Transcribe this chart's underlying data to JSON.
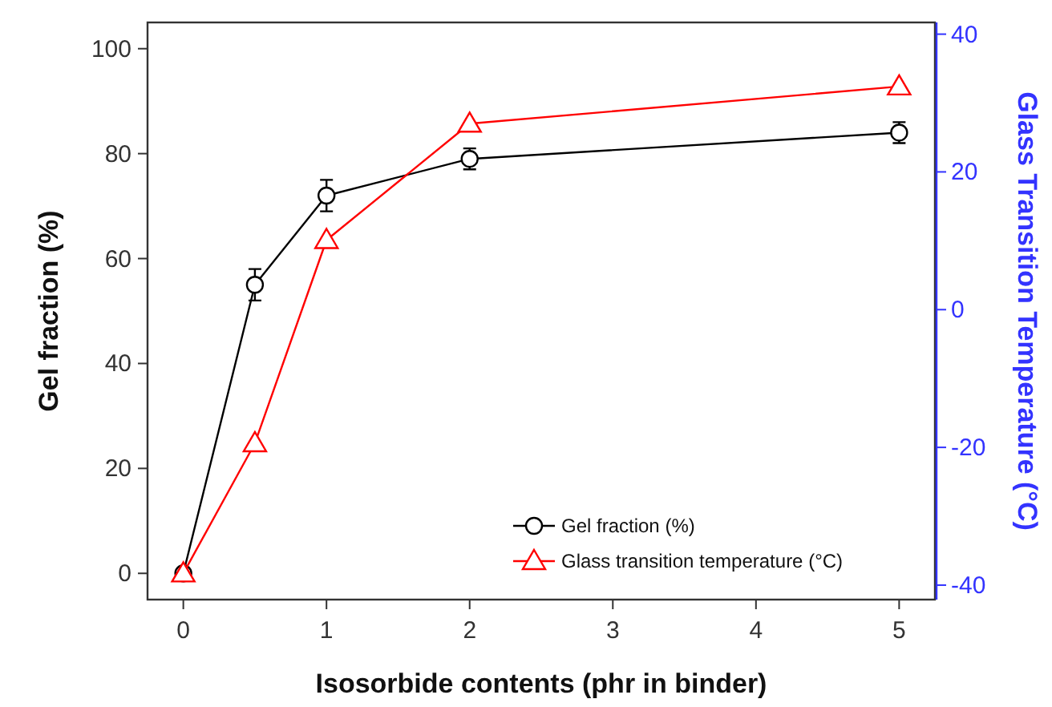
{
  "chart_data": {
    "type": "line",
    "xlabel": "Isosorbide contents (phr in binder)",
    "ylabel": "Gel fraction (%)",
    "y2label": "Glass Transition Temperature (°C)",
    "x": [
      0,
      0.5,
      1,
      2,
      5
    ],
    "xlim": [
      -0.25,
      5.25
    ],
    "xticks": [
      0,
      1,
      2,
      3,
      4,
      5
    ],
    "ylim": [
      -5,
      105
    ],
    "yticks": [
      0,
      20,
      40,
      60,
      80,
      100
    ],
    "y2lim": [
      -42.1,
      41.7
    ],
    "y2ticks": [
      -40,
      -20,
      0,
      20,
      40
    ],
    "legend": "bottom right",
    "grid": false,
    "series": [
      {
        "name": "Gel fraction (%)",
        "color": "#000000",
        "marker": "circle",
        "values": [
          0,
          55,
          72,
          79,
          84
        ],
        "errors": [
          null,
          3,
          3,
          2,
          2
        ]
      },
      {
        "name": "Glass transition temperature (°C)",
        "color": "#ff0000",
        "marker": "triangle",
        "axis": "y2",
        "values": [
          -38.3,
          -19.4,
          10.1,
          27,
          32.4
        ]
      }
    ]
  }
}
